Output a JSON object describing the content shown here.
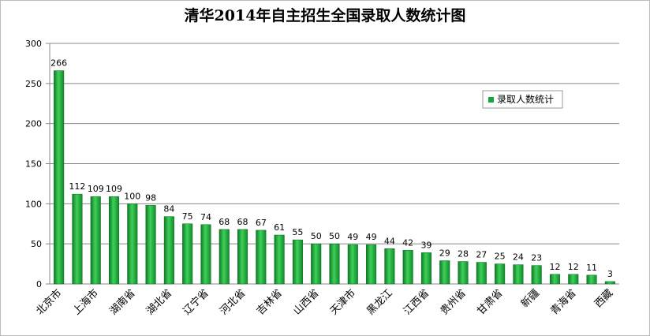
{
  "chart_data": {
    "type": "bar",
    "title": "清华2014年自主招生全国录取人数统计图",
    "categories": [
      "北京市",
      null,
      "上海市",
      null,
      "湖南省",
      null,
      "湖北省",
      null,
      "辽宁省",
      null,
      "河北省",
      null,
      "吉林省",
      null,
      "山西省",
      null,
      "天津市",
      null,
      "黑龙江",
      null,
      "江西省",
      null,
      "贵州省",
      null,
      "甘肃省",
      null,
      "新疆",
      null,
      "青海省",
      null,
      "西藏"
    ],
    "series": [
      {
        "name": "录取人数统计",
        "color": "#1aa337",
        "values": [
          266,
          112,
          109,
          109,
          100,
          98,
          84,
          75,
          74,
          68,
          68,
          67,
          61,
          55,
          50,
          50,
          49,
          49,
          44,
          42,
          39,
          29,
          28,
          27,
          25,
          24,
          23,
          12,
          12,
          11,
          3
        ]
      }
    ],
    "ylim": [
      0,
      300
    ],
    "yticks": [
      0,
      50,
      100,
      150,
      200,
      250,
      300
    ],
    "grid": true,
    "legend": "right"
  }
}
